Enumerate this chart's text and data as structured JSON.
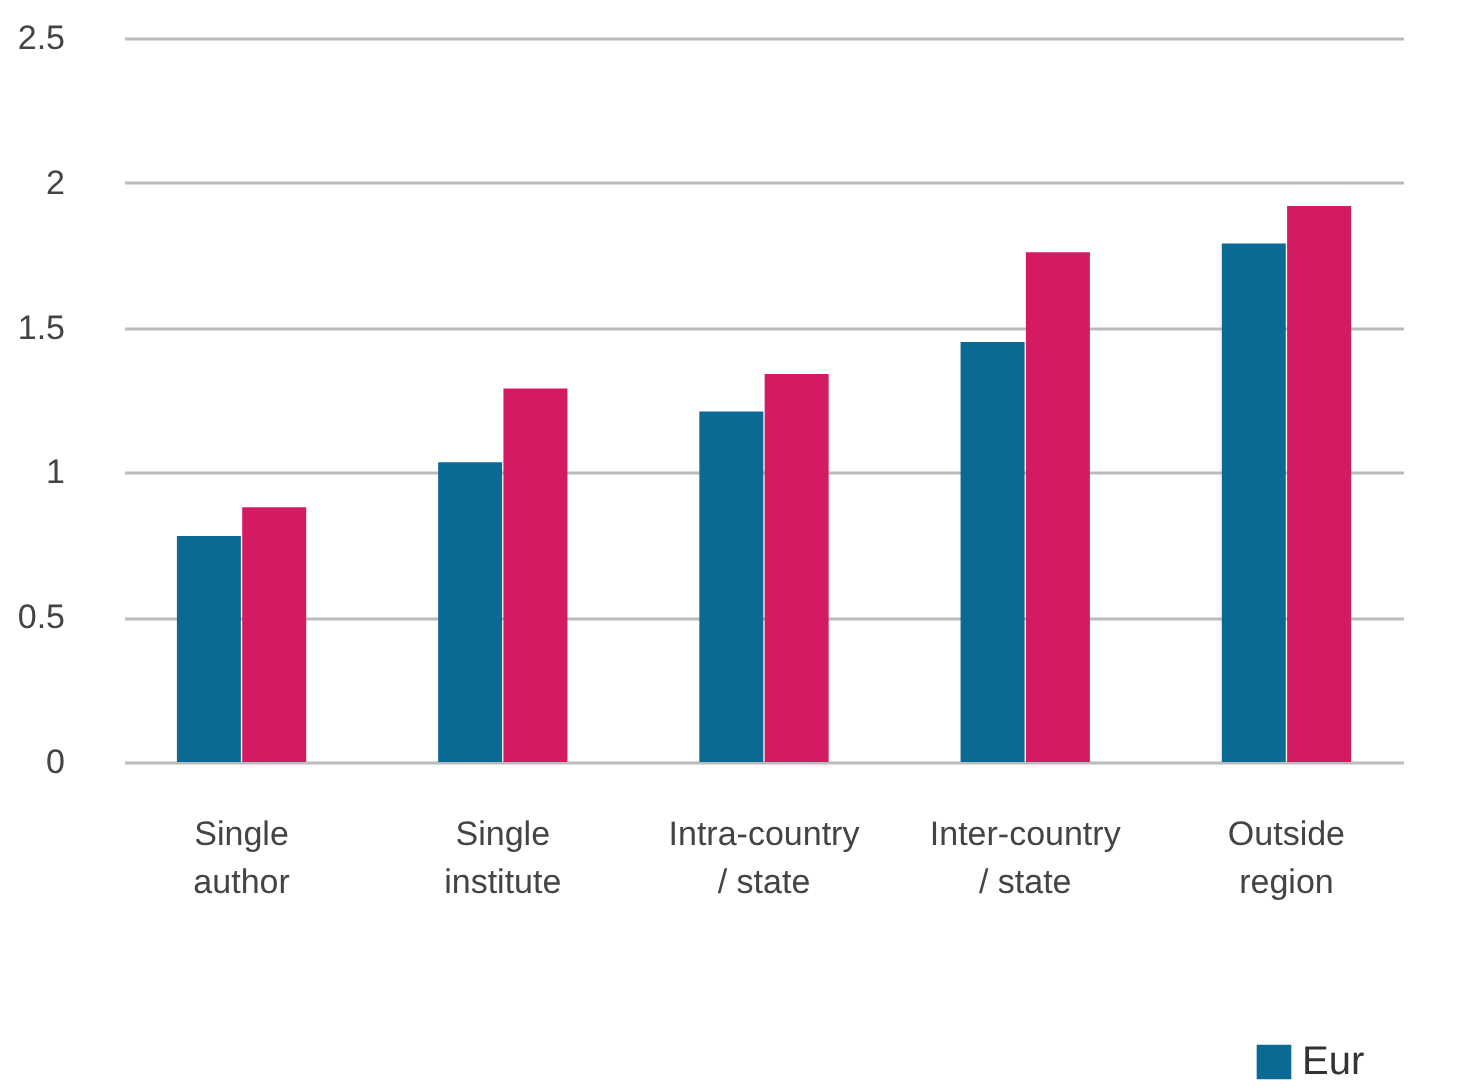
{
  "chart_data": {
    "type": "bar",
    "categories": [
      "Single author",
      "Single institute",
      "Intra-country / state",
      "Inter-country / state",
      "Outside region"
    ],
    "series": [
      {
        "name": "Eur",
        "color": "#0b6a93",
        "values": [
          0.78,
          1.035,
          1.21,
          1.45,
          1.79
        ]
      },
      {
        "color": "#d41a63",
        "values": [
          0.88,
          1.29,
          1.34,
          1.76,
          1.92
        ]
      }
    ],
    "ylim": [
      0,
      2.5
    ],
    "yticks": [
      0,
      0.5,
      1,
      1.5,
      2,
      2.5
    ],
    "grid": "y",
    "legend": "bottom right"
  }
}
